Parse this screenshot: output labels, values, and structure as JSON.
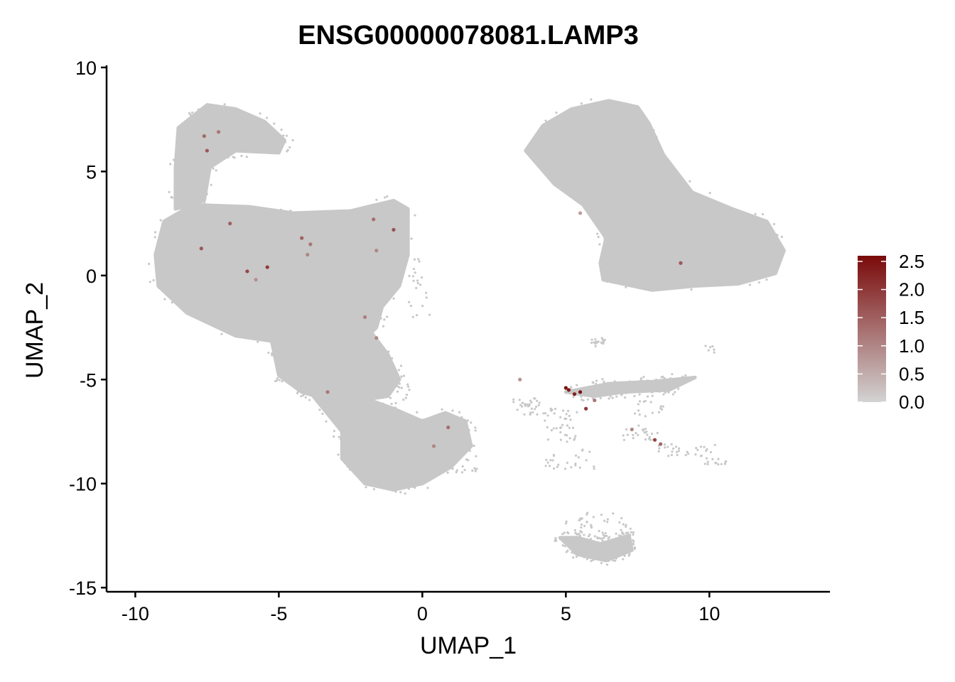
{
  "chart_data": {
    "type": "scatter",
    "title": "ENSG00000078081.LAMP3",
    "xlabel": "UMAP_1",
    "ylabel": "UMAP_2",
    "xlim": [
      -11.0,
      14.2
    ],
    "ylim": [
      -15.2,
      10.1
    ],
    "xticks": [
      -10,
      -5,
      0,
      5,
      10
    ],
    "yticks": [
      -15,
      -10,
      -5,
      0,
      5,
      10
    ],
    "xtick_labels": [
      "-10",
      "-5",
      "0",
      "5",
      "10"
    ],
    "ytick_labels": [
      "-15",
      "-10",
      "-5",
      "0",
      "5",
      "10"
    ],
    "grid": false,
    "background_color": "#C8C8C8",
    "colorbar": {
      "position": "right",
      "low_color": "#D3D3D3",
      "high_color": "#7A0A0A",
      "min": 0.0,
      "max": 2.6,
      "ticks": [
        0.0,
        0.5,
        1.0,
        1.5,
        2.0,
        2.5
      ],
      "tick_labels": [
        "0.0",
        "0.5",
        "1.0",
        "1.5",
        "2.0",
        "2.5"
      ]
    },
    "clusters": [
      {
        "name": "left_main",
        "shape": "polygon",
        "outline": [
          [
            -9.3,
            1.0
          ],
          [
            -9.0,
            2.6
          ],
          [
            -8.0,
            3.4
          ],
          [
            -6.0,
            3.3
          ],
          [
            -4.5,
            3.0
          ],
          [
            -2.5,
            3.1
          ],
          [
            -1.0,
            3.6
          ],
          [
            -0.5,
            3.2
          ],
          [
            -0.5,
            1.0
          ],
          [
            -0.8,
            -0.5
          ],
          [
            -1.4,
            -1.5
          ],
          [
            -1.6,
            -2.5
          ],
          [
            -2.2,
            -3.3
          ],
          [
            -4.5,
            -3.3
          ],
          [
            -6.5,
            -2.9
          ],
          [
            -8.2,
            -1.8
          ],
          [
            -9.2,
            -0.5
          ]
        ]
      },
      {
        "name": "left_arm",
        "shape": "polygon",
        "outline": [
          [
            -8.6,
            3.2
          ],
          [
            -8.6,
            5.2
          ],
          [
            -8.5,
            7.1
          ],
          [
            -7.5,
            8.2
          ],
          [
            -6.5,
            8.0
          ],
          [
            -5.5,
            7.4
          ],
          [
            -4.8,
            6.5
          ],
          [
            -5.0,
            5.9
          ],
          [
            -6.5,
            6.0
          ],
          [
            -7.4,
            5.2
          ],
          [
            -7.6,
            3.6
          ]
        ]
      },
      {
        "name": "lower_middle",
        "shape": "polygon",
        "outline": [
          [
            -5.3,
            -2.8
          ],
          [
            -5.0,
            -4.8
          ],
          [
            -4.2,
            -5.6
          ],
          [
            -3.2,
            -6.0
          ],
          [
            -2.2,
            -6.0
          ],
          [
            -1.2,
            -5.8
          ],
          [
            -0.8,
            -5.0
          ],
          [
            -1.2,
            -3.8
          ],
          [
            -1.8,
            -2.7
          ],
          [
            -3.5,
            -2.6
          ]
        ]
      },
      {
        "name": "lower_tail",
        "shape": "polygon",
        "outline": [
          [
            -3.8,
            -5.8
          ],
          [
            -2.8,
            -7.5
          ],
          [
            -2.8,
            -8.8
          ],
          [
            -2.0,
            -10.0
          ],
          [
            -1.0,
            -10.3
          ],
          [
            0.0,
            -10.0
          ],
          [
            1.0,
            -9.2
          ],
          [
            1.7,
            -8.2
          ],
          [
            1.5,
            -7.0
          ],
          [
            0.8,
            -6.6
          ],
          [
            0.0,
            -7.0
          ],
          [
            -1.0,
            -6.4
          ],
          [
            -1.8,
            -6.0
          ],
          [
            -2.6,
            -6.1
          ]
        ]
      },
      {
        "name": "right_top",
        "shape": "polygon",
        "outline": [
          [
            3.6,
            6.0
          ],
          [
            4.2,
            7.2
          ],
          [
            5.2,
            8.0
          ],
          [
            6.5,
            8.4
          ],
          [
            7.5,
            8.1
          ],
          [
            7.9,
            7.3
          ],
          [
            8.4,
            5.8
          ],
          [
            9.4,
            4.0
          ],
          [
            10.8,
            3.2
          ],
          [
            12.0,
            2.6
          ],
          [
            12.6,
            1.2
          ],
          [
            12.3,
            0.1
          ],
          [
            11.0,
            -0.4
          ],
          [
            9.5,
            -0.5
          ],
          [
            8.0,
            -0.7
          ],
          [
            6.3,
            -0.2
          ],
          [
            6.2,
            0.6
          ],
          [
            6.4,
            1.8
          ],
          [
            5.6,
            3.4
          ],
          [
            4.6,
            4.4
          ]
        ]
      },
      {
        "name": "center_band",
        "shape": "polygon",
        "outline": [
          [
            5.0,
            -5.6
          ],
          [
            6.5,
            -5.2
          ],
          [
            8.0,
            -5.1
          ],
          [
            9.5,
            -4.9
          ],
          [
            8.6,
            -5.5
          ],
          [
            7.0,
            -5.6
          ],
          [
            6.0,
            -5.8
          ]
        ]
      },
      {
        "name": "bottom_blob",
        "shape": "polygon",
        "outline": [
          [
            4.8,
            -12.6
          ],
          [
            5.4,
            -13.4
          ],
          [
            6.4,
            -13.7
          ],
          [
            7.3,
            -13.2
          ],
          [
            7.2,
            -12.5
          ],
          [
            6.2,
            -12.9
          ],
          [
            5.4,
            -12.6
          ]
        ]
      }
    ],
    "expressing_cells": [
      {
        "x": -7.6,
        "y": 6.7,
        "value": 1.4
      },
      {
        "x": -7.5,
        "y": 6.0,
        "value": 1.6
      },
      {
        "x": -7.1,
        "y": 6.9,
        "value": 1.2
      },
      {
        "x": -6.7,
        "y": 2.5,
        "value": 1.5
      },
      {
        "x": -7.7,
        "y": 1.3,
        "value": 1.6
      },
      {
        "x": -6.1,
        "y": 0.2,
        "value": 1.8
      },
      {
        "x": -5.4,
        "y": 0.4,
        "value": 2.0
      },
      {
        "x": -5.8,
        "y": -0.2,
        "value": 0.9
      },
      {
        "x": -4.2,
        "y": 1.8,
        "value": 1.5
      },
      {
        "x": -3.9,
        "y": 1.5,
        "value": 1.2
      },
      {
        "x": -4.0,
        "y": 1.0,
        "value": 1.0
      },
      {
        "x": -1.7,
        "y": 2.7,
        "value": 1.3
      },
      {
        "x": -1.0,
        "y": 2.2,
        "value": 1.7
      },
      {
        "x": -1.6,
        "y": 1.2,
        "value": 1.0
      },
      {
        "x": -2.0,
        "y": -2.0,
        "value": 1.1
      },
      {
        "x": -1.6,
        "y": -3.0,
        "value": 1.0
      },
      {
        "x": -3.3,
        "y": -5.6,
        "value": 1.2
      },
      {
        "x": 0.9,
        "y": -7.3,
        "value": 1.3
      },
      {
        "x": 0.4,
        "y": -8.2,
        "value": 1.0
      },
      {
        "x": 5.0,
        "y": -5.4,
        "value": 2.5
      },
      {
        "x": 5.1,
        "y": -5.5,
        "value": 2.4
      },
      {
        "x": 5.3,
        "y": -5.7,
        "value": 2.3
      },
      {
        "x": 5.5,
        "y": -5.6,
        "value": 2.5
      },
      {
        "x": 5.7,
        "y": -6.4,
        "value": 2.0
      },
      {
        "x": 6.0,
        "y": -6.0,
        "value": 1.2
      },
      {
        "x": 3.4,
        "y": -5.0,
        "value": 0.8
      },
      {
        "x": 7.3,
        "y": -7.4,
        "value": 1.0
      },
      {
        "x": 8.1,
        "y": -7.9,
        "value": 1.8
      },
      {
        "x": 8.3,
        "y": -8.1,
        "value": 1.4
      },
      {
        "x": 9.0,
        "y": 0.6,
        "value": 1.6
      },
      {
        "x": 5.5,
        "y": 3.0,
        "value": 0.7
      }
    ]
  }
}
